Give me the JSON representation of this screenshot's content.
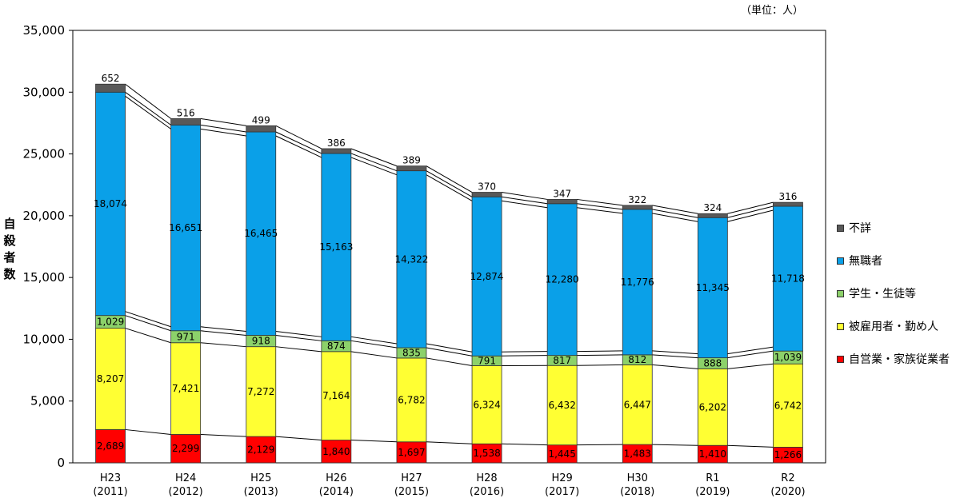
{
  "chart_data": {
    "type": "bar",
    "stacked": true,
    "unit_note": "（単位：人）",
    "ylabel": "自殺者数",
    "ylim": [
      0,
      35000
    ],
    "yticks": [
      "0",
      "5,000",
      "10,000",
      "15,000",
      "20,000",
      "25,000",
      "30,000",
      "35,000"
    ],
    "categories": [
      "H23\n(2011)",
      "H24\n(2012)",
      "H25\n(2013)",
      "H26\n(2014)",
      "H27\n(2015)",
      "H28\n(2016)",
      "H29\n(2017)",
      "H30\n(2018)",
      "R1\n(2019)",
      "R2\n(2020)"
    ],
    "series": [
      {
        "name": "自営業・家族従業者",
        "color": "#ff0000",
        "values": [
          2689,
          2299,
          2129,
          1840,
          1697,
          1538,
          1445,
          1483,
          1410,
          1266
        ]
      },
      {
        "name": "被雇用者・勤め人",
        "color": "#ffff33",
        "values": [
          8207,
          7421,
          7272,
          7164,
          6782,
          6324,
          6432,
          6447,
          6202,
          6742
        ]
      },
      {
        "name": "学生・生徒等",
        "color": "#8cd16a",
        "values": [
          1029,
          971,
          918,
          874,
          835,
          791,
          817,
          812,
          888,
          1039
        ]
      },
      {
        "name": "無職者",
        "color": "#0aa0e8",
        "values": [
          18074,
          16651,
          16465,
          15163,
          14322,
          12874,
          12280,
          11776,
          11345,
          11718
        ]
      },
      {
        "name": "不詳",
        "color": "#595959",
        "values": [
          652,
          516,
          499,
          386,
          389,
          370,
          347,
          322,
          324,
          316
        ]
      }
    ],
    "legend_position": "right"
  }
}
